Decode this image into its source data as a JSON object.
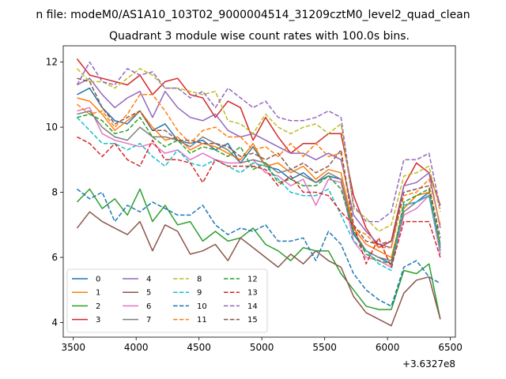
{
  "chart_data": {
    "type": "line",
    "suptitle": "n file: modeM0/AS1A10_103T02_9000004514_31209cztM0_level2_quad_clean",
    "title": "Quadrant 3 module wise count rates with 100.0s bins.",
    "xlabel": "",
    "ylabel": "",
    "x_offset_label": "+3.6327e8",
    "xlim": [
      3420,
      6540
    ],
    "ylim": [
      3.55,
      12.5
    ],
    "xticks": [
      3500,
      4000,
      4500,
      5000,
      5500,
      6000,
      6500
    ],
    "yticks": [
      4,
      6,
      8,
      10,
      12
    ],
    "x": [
      3530,
      3630,
      3730,
      3830,
      3930,
      4030,
      4130,
      4230,
      4330,
      4430,
      4530,
      4630,
      4730,
      4830,
      4930,
      5030,
      5130,
      5230,
      5330,
      5430,
      5530,
      5630,
      5730,
      5830,
      5930,
      6030,
      6130,
      6230,
      6330,
      6420
    ],
    "legend_position": "lower left",
    "series": [
      {
        "name": "0",
        "color": "#1f77b4",
        "dash": "solid",
        "values": [
          11.0,
          11.2,
          10.6,
          10.2,
          10.1,
          10.5,
          9.9,
          10.1,
          9.6,
          9.5,
          9.6,
          9.3,
          9.5,
          8.9,
          9.4,
          8.8,
          8.7,
          8.4,
          8.6,
          8.3,
          8.5,
          8.4,
          6.7,
          6.2,
          6.0,
          5.8,
          7.6,
          7.7,
          8.0,
          6.3
        ]
      },
      {
        "name": "1",
        "color": "#ff7f0e",
        "dash": "solid",
        "values": [
          10.9,
          10.8,
          10.4,
          9.9,
          10.2,
          10.5,
          10.0,
          9.6,
          9.7,
          9.3,
          9.5,
          9.4,
          9.2,
          9.0,
          9.5,
          8.8,
          8.9,
          8.6,
          8.8,
          8.4,
          8.7,
          8.6,
          6.9,
          6.4,
          6.2,
          6.0,
          7.5,
          7.9,
          8.0,
          6.2
        ]
      },
      {
        "name": "2",
        "color": "#2ca02c",
        "dash": "solid",
        "values": [
          7.7,
          8.1,
          7.5,
          7.8,
          7.3,
          8.1,
          7.1,
          7.6,
          7.0,
          7.1,
          6.5,
          6.8,
          6.5,
          6.6,
          6.9,
          6.4,
          6.2,
          5.9,
          6.3,
          6.2,
          6.2,
          5.5,
          5.0,
          4.5,
          4.4,
          4.4,
          5.6,
          5.5,
          5.8,
          4.1
        ]
      },
      {
        "name": "3",
        "color": "#d62728",
        "dash": "solid",
        "values": [
          12.1,
          11.6,
          11.5,
          11.4,
          11.3,
          11.6,
          11.0,
          11.4,
          11.5,
          11.0,
          10.9,
          10.3,
          10.8,
          10.6,
          9.6,
          10.3,
          9.7,
          9.2,
          9.5,
          9.5,
          9.8,
          9.8,
          7.9,
          6.9,
          6.3,
          6.5,
          8.2,
          8.9,
          8.6,
          7.6
        ]
      },
      {
        "name": "4",
        "color": "#9467bd",
        "dash": "solid",
        "values": [
          11.3,
          11.5,
          11.0,
          10.6,
          10.9,
          11.1,
          10.3,
          11.1,
          10.6,
          10.3,
          10.2,
          10.4,
          9.9,
          9.7,
          9.8,
          9.6,
          9.4,
          9.2,
          9.2,
          9.0,
          9.2,
          9.0,
          7.3,
          6.8,
          6.4,
          6.3,
          8.2,
          8.3,
          8.6,
          6.9
        ]
      },
      {
        "name": "5",
        "color": "#8c564b",
        "dash": "solid",
        "values": [
          6.9,
          7.4,
          7.1,
          6.9,
          6.7,
          7.1,
          6.2,
          7.0,
          6.8,
          6.1,
          6.2,
          6.4,
          5.9,
          6.6,
          6.3,
          6.0,
          5.7,
          6.1,
          5.8,
          6.2,
          5.9,
          5.7,
          4.8,
          4.3,
          4.1,
          3.9,
          4.9,
          5.3,
          5.4,
          4.1
        ]
      },
      {
        "name": "6",
        "color": "#e377c2",
        "dash": "solid",
        "values": [
          10.5,
          10.6,
          9.8,
          9.6,
          9.5,
          9.4,
          9.5,
          9.2,
          9.3,
          9.0,
          9.2,
          9.0,
          8.9,
          8.9,
          9.0,
          8.6,
          8.5,
          8.2,
          8.4,
          7.6,
          8.4,
          8.3,
          6.5,
          6.0,
          5.9,
          5.7,
          7.3,
          7.5,
          7.9,
          6.1
        ]
      },
      {
        "name": "7",
        "color": "#7f7f7f",
        "dash": "solid",
        "values": [
          10.4,
          10.5,
          10.0,
          9.7,
          9.6,
          10.0,
          9.7,
          9.7,
          9.6,
          9.4,
          9.7,
          9.5,
          9.3,
          8.9,
          9.0,
          8.9,
          8.6,
          8.7,
          8.5,
          8.3,
          8.6,
          8.4,
          6.8,
          6.2,
          6.0,
          5.9,
          7.4,
          7.7,
          7.9,
          6.4
        ]
      },
      {
        "name": "8",
        "color": "#bcbd22",
        "dash": "dashed",
        "values": [
          11.8,
          11.4,
          11.4,
          11.2,
          11.5,
          11.8,
          11.6,
          11.2,
          11.2,
          11.1,
          11.0,
          11.1,
          10.2,
          10.1,
          9.8,
          10.4,
          10.0,
          9.8,
          10.0,
          10.1,
          9.8,
          10.1,
          7.5,
          7.2,
          6.8,
          7.0,
          8.5,
          8.6,
          8.8,
          7.4
        ]
      },
      {
        "name": "9",
        "color": "#17becf",
        "dash": "dashed",
        "values": [
          10.3,
          9.9,
          9.5,
          9.5,
          9.3,
          9.5,
          9.1,
          8.8,
          9.3,
          8.9,
          8.8,
          9.0,
          8.8,
          8.6,
          8.9,
          8.8,
          8.4,
          8.0,
          7.9,
          7.9,
          8.1,
          7.3,
          6.5,
          6.2,
          5.8,
          5.6,
          7.6,
          7.7,
          7.9,
          6.2
        ]
      },
      {
        "name": "10",
        "color": "#1f77b4",
        "dash": "dashed",
        "values": [
          8.1,
          7.8,
          8.0,
          7.1,
          7.6,
          7.4,
          7.7,
          7.5,
          7.3,
          7.3,
          7.6,
          7.0,
          6.7,
          6.9,
          6.8,
          7.0,
          6.5,
          6.5,
          6.6,
          5.9,
          6.8,
          6.4,
          5.5,
          5.0,
          4.7,
          4.5,
          5.7,
          5.9,
          5.4,
          5.2
        ]
      },
      {
        "name": "11",
        "color": "#ff7f0e",
        "dash": "dashed",
        "values": [
          10.7,
          10.4,
          10.5,
          10.0,
          10.4,
          11.0,
          11.0,
          10.5,
          9.9,
          9.5,
          9.9,
          10.0,
          9.7,
          9.7,
          9.3,
          9.4,
          9.1,
          9.5,
          9.1,
          9.5,
          9.1,
          9.2,
          6.9,
          6.7,
          6.3,
          6.3,
          7.9,
          8.0,
          8.4,
          7.0
        ]
      },
      {
        "name": "12",
        "color": "#2ca02c",
        "dash": "dashed",
        "values": [
          10.3,
          10.4,
          10.2,
          9.8,
          9.9,
          10.3,
          9.7,
          9.4,
          9.6,
          9.2,
          9.4,
          9.3,
          9.1,
          9.4,
          8.7,
          8.9,
          8.3,
          8.4,
          8.2,
          8.2,
          8.5,
          8.1,
          6.8,
          6.1,
          5.9,
          5.8,
          7.7,
          7.9,
          8.1,
          6.4
        ]
      },
      {
        "name": "13",
        "color": "#d62728",
        "dash": "dashed",
        "values": [
          9.7,
          9.5,
          9.1,
          9.5,
          9.0,
          8.8,
          9.6,
          9.0,
          9.0,
          8.9,
          8.3,
          9.0,
          8.8,
          8.8,
          8.8,
          8.7,
          8.2,
          8.5,
          8.0,
          8.0,
          7.9,
          7.4,
          7.0,
          5.8,
          6.6,
          5.7,
          7.1,
          7.1,
          7.1,
          6.0
        ]
      },
      {
        "name": "14",
        "color": "#9467bd",
        "dash": "dashed",
        "values": [
          11.3,
          12.0,
          11.4,
          11.3,
          11.8,
          11.6,
          11.7,
          11.2,
          11.2,
          10.9,
          11.1,
          10.6,
          11.2,
          10.9,
          10.6,
          10.8,
          10.3,
          10.2,
          10.2,
          10.3,
          10.5,
          10.3,
          7.6,
          7.1,
          7.1,
          7.4,
          9.0,
          9.0,
          9.2,
          7.5
        ]
      },
      {
        "name": "15",
        "color": "#8c564b",
        "dash": "dashed",
        "values": [
          11.5,
          11.4,
          10.6,
          10.1,
          10.3,
          10.5,
          9.9,
          9.9,
          9.6,
          9.6,
          9.5,
          9.5,
          9.4,
          9.1,
          9.2,
          9.0,
          9.2,
          8.7,
          8.9,
          8.6,
          8.8,
          9.3,
          7.0,
          6.5,
          6.4,
          6.5,
          8.0,
          8.1,
          8.2,
          6.6
        ]
      }
    ]
  }
}
